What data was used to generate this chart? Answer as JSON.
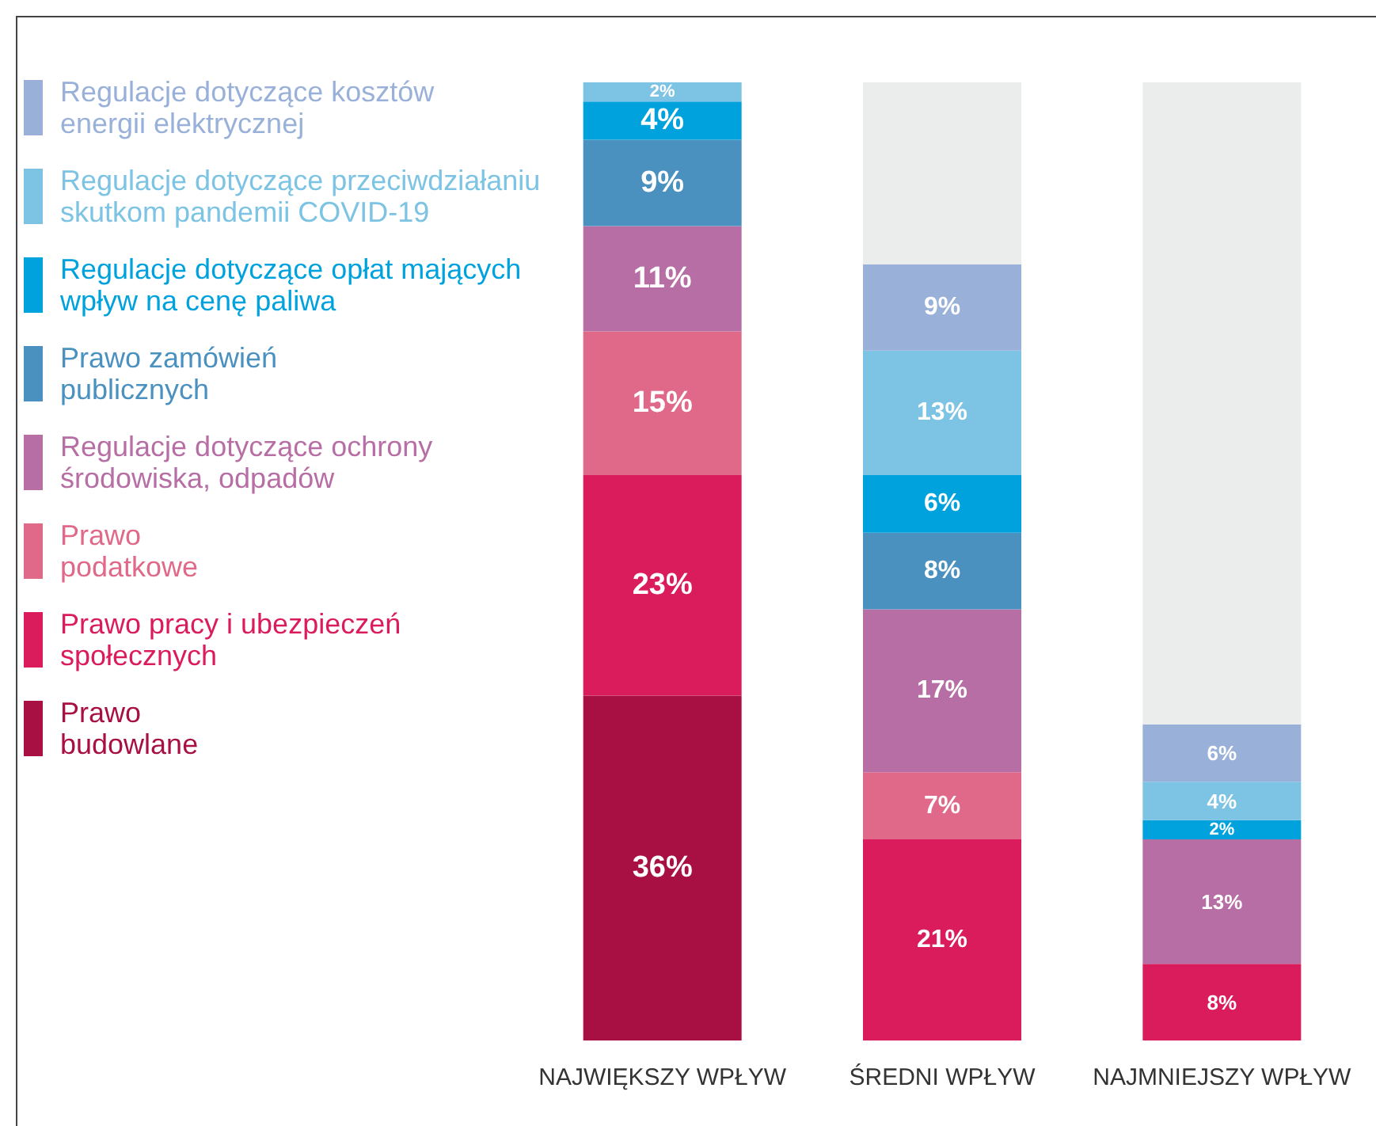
{
  "chart_data": {
    "type": "bar",
    "stacked": true,
    "categories": [
      "NAJWIĘKSZY WPŁYW",
      "ŚREDNI WPŁYW",
      "NAJMNIEJSZY WPŁYW"
    ],
    "ylim": [
      0,
      100
    ],
    "tick_labels": "x",
    "legend": "left",
    "series": [
      {
        "name": "Prawo\nbudowlane",
        "color": "#a81044",
        "values": [
          36,
          null,
          null
        ],
        "value_labels": [
          "36%",
          null,
          null
        ]
      },
      {
        "name": "Prawo pracy i ubezpieczeń\nspołecznych",
        "color": "#da1c5c",
        "values": [
          23,
          21,
          8
        ],
        "value_labels": [
          "23%",
          "21%",
          "8%"
        ]
      },
      {
        "name": "Prawo\npodatkowe",
        "color": "#e06888",
        "values": [
          15,
          7,
          null
        ],
        "value_labels": [
          "15%",
          "7%",
          null
        ]
      },
      {
        "name": "Regulacje dotyczące ochrony\nśrodowiska, odpadów",
        "color": "#b76ea5",
        "values": [
          11,
          17,
          13
        ],
        "value_labels": [
          "11%",
          "17%",
          "13%"
        ]
      },
      {
        "name": "Prawo zamówień\npublicznych",
        "color": "#4a91c0",
        "values": [
          9,
          8,
          null
        ],
        "value_labels": [
          "9%",
          "8%",
          null
        ]
      },
      {
        "name": "Regulacje dotyczące opłat mających\nwpływ na cenę paliwa",
        "color": "#00a2dd",
        "values": [
          4,
          6,
          2
        ],
        "value_labels": [
          "4%",
          "6%",
          "2%"
        ]
      },
      {
        "name": "Regulacje dotyczące przeciwdziałaniu\nskutkom pandemii COVID-19",
        "color": "#7cc3e4",
        "values": [
          2,
          13,
          4
        ],
        "value_labels": [
          "2%",
          "13%",
          "4%"
        ]
      },
      {
        "name": "Regulacje dotyczące kosztów\nenergii elektrycznej",
        "color": "#99b1d9",
        "values": [
          null,
          9,
          6
        ],
        "value_labels": [
          null,
          "9%",
          "6%"
        ]
      },
      {
        "color": "#ebeded",
        "values": [
          null,
          19,
          67
        ]
      }
    ]
  }
}
